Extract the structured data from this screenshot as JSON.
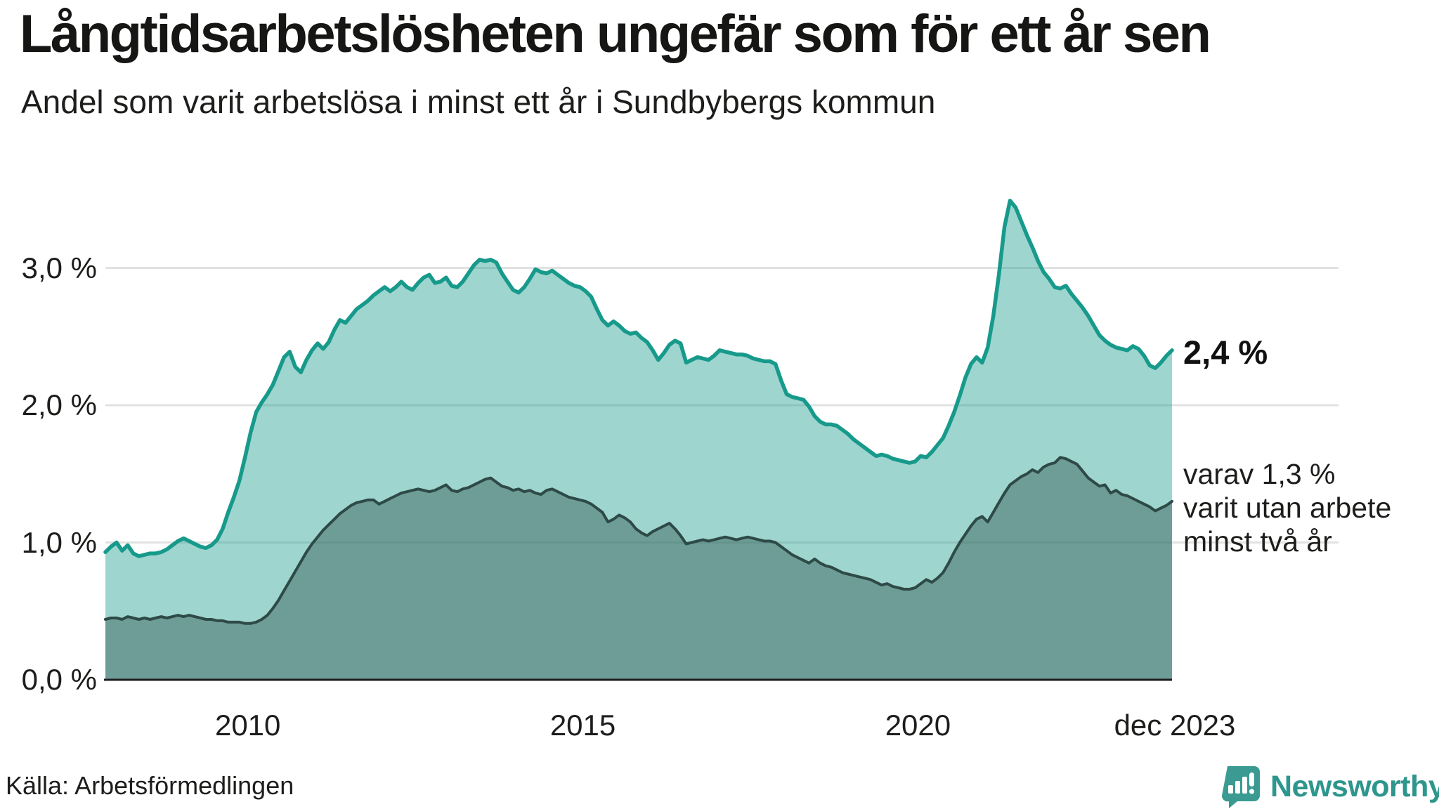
{
  "header": {
    "title": "Långtidsarbetslösheten ungefär som för ett år sen",
    "subtitle": "Andel som varit arbetslösa i minst ett år i Sundbybergs kommun"
  },
  "annotations": {
    "end_value_primary": "2,4 %",
    "end_note_lines": [
      "varav 1,3 %",
      "varit utan arbete",
      "minst två år"
    ]
  },
  "source": {
    "label": "Källa: Arbetsförmedlingen"
  },
  "logo": {
    "brand": "Newsworthy",
    "icon": "newsworthy-speech-bubble-chart-icon",
    "text_color": "#2e968c",
    "icon_color": "#3b9a92"
  },
  "chart_data": {
    "type": "area",
    "title": "Långtidsarbetslösheten ungefär som för ett år sen",
    "subtitle": "Andel som varit arbetslösa i minst ett år i Sundbybergs kommun",
    "frequency": "monthly",
    "x_start": "2008-01",
    "x_end": "2023-12",
    "ylim": [
      0,
      3.6
    ],
    "grid": true,
    "legend_position": "none",
    "colors": {
      "primary_line": "#179a8b",
      "primary_fill": "rgba(26,154,140,0.42)",
      "secondary_line": "#2e4a47",
      "secondary_fill": "rgba(52,89,84,0.45)",
      "gridline": "#e2e2e2",
      "axis_line": "#1d1d1b"
    },
    "y_ticks": [
      {
        "value": 3.0,
        "label": "3,0 %"
      },
      {
        "value": 2.0,
        "label": "2,0 %"
      },
      {
        "value": 1.0,
        "label": "1,0 %"
      },
      {
        "value": 0.0,
        "label": "0,0 %"
      }
    ],
    "x_ticks": [
      {
        "label": "2010",
        "index": 25
      },
      {
        "label": "2015",
        "index": 85
      },
      {
        "label": "2020",
        "index": 145
      },
      {
        "label": "dec 2023",
        "index": 191
      }
    ],
    "series": [
      {
        "name": "Arbetslösa minst ett år",
        "end_label": "2,4 %",
        "values": [
          0.93,
          0.97,
          1.0,
          0.94,
          0.98,
          0.92,
          0.9,
          0.91,
          0.92,
          0.92,
          0.93,
          0.95,
          0.98,
          1.01,
          1.03,
          1.01,
          0.99,
          0.97,
          0.96,
          0.98,
          1.02,
          1.1,
          1.22,
          1.33,
          1.45,
          1.62,
          1.8,
          1.95,
          2.02,
          2.08,
          2.15,
          2.25,
          2.35,
          2.39,
          2.28,
          2.24,
          2.33,
          2.4,
          2.45,
          2.41,
          2.46,
          2.55,
          2.62,
          2.6,
          2.65,
          2.7,
          2.73,
          2.76,
          2.8,
          2.83,
          2.86,
          2.83,
          2.86,
          2.9,
          2.86,
          2.84,
          2.89,
          2.93,
          2.95,
          2.89,
          2.9,
          2.93,
          2.87,
          2.86,
          2.9,
          2.96,
          3.02,
          3.06,
          3.05,
          3.06,
          3.04,
          2.96,
          2.9,
          2.84,
          2.82,
          2.86,
          2.92,
          2.99,
          2.97,
          2.96,
          2.98,
          2.95,
          2.92,
          2.89,
          2.87,
          2.86,
          2.83,
          2.79,
          2.7,
          2.62,
          2.58,
          2.61,
          2.58,
          2.54,
          2.52,
          2.53,
          2.49,
          2.46,
          2.4,
          2.33,
          2.38,
          2.44,
          2.47,
          2.45,
          2.31,
          2.33,
          2.35,
          2.34,
          2.33,
          2.36,
          2.4,
          2.39,
          2.38,
          2.37,
          2.37,
          2.36,
          2.34,
          2.33,
          2.32,
          2.32,
          2.3,
          2.18,
          2.08,
          2.06,
          2.05,
          2.04,
          1.99,
          1.92,
          1.88,
          1.86,
          1.86,
          1.85,
          1.82,
          1.79,
          1.75,
          1.72,
          1.69,
          1.66,
          1.63,
          1.64,
          1.63,
          1.61,
          1.6,
          1.59,
          1.58,
          1.59,
          1.63,
          1.62,
          1.66,
          1.71,
          1.76,
          1.85,
          1.95,
          2.07,
          2.2,
          2.3,
          2.35,
          2.31,
          2.42,
          2.65,
          2.95,
          3.3,
          3.49,
          3.44,
          3.34,
          3.24,
          3.15,
          3.05,
          2.97,
          2.92,
          2.86,
          2.85,
          2.87,
          2.81,
          2.76,
          2.71,
          2.65,
          2.58,
          2.51,
          2.47,
          2.44,
          2.42,
          2.41,
          2.4,
          2.43,
          2.41,
          2.36,
          2.29,
          2.27,
          2.31,
          2.36,
          2.4
        ]
      },
      {
        "name": "Varav utan arbete minst två år",
        "end_label": "1,3 %",
        "values": [
          0.44,
          0.45,
          0.45,
          0.44,
          0.46,
          0.45,
          0.44,
          0.45,
          0.44,
          0.45,
          0.46,
          0.45,
          0.46,
          0.47,
          0.46,
          0.47,
          0.46,
          0.45,
          0.44,
          0.44,
          0.43,
          0.43,
          0.42,
          0.42,
          0.42,
          0.41,
          0.41,
          0.42,
          0.44,
          0.47,
          0.52,
          0.58,
          0.65,
          0.72,
          0.79,
          0.86,
          0.93,
          0.99,
          1.04,
          1.09,
          1.13,
          1.17,
          1.21,
          1.24,
          1.27,
          1.29,
          1.3,
          1.31,
          1.31,
          1.28,
          1.3,
          1.32,
          1.34,
          1.36,
          1.37,
          1.38,
          1.39,
          1.38,
          1.37,
          1.38,
          1.4,
          1.42,
          1.38,
          1.37,
          1.39,
          1.4,
          1.42,
          1.44,
          1.46,
          1.47,
          1.44,
          1.41,
          1.4,
          1.38,
          1.39,
          1.37,
          1.38,
          1.36,
          1.35,
          1.38,
          1.39,
          1.37,
          1.35,
          1.33,
          1.32,
          1.31,
          1.3,
          1.28,
          1.25,
          1.22,
          1.15,
          1.17,
          1.2,
          1.18,
          1.15,
          1.1,
          1.07,
          1.05,
          1.08,
          1.1,
          1.12,
          1.14,
          1.1,
          1.05,
          0.99,
          1.0,
          1.01,
          1.02,
          1.01,
          1.02,
          1.03,
          1.04,
          1.03,
          1.02,
          1.03,
          1.04,
          1.03,
          1.02,
          1.01,
          1.01,
          1.0,
          0.97,
          0.94,
          0.91,
          0.89,
          0.87,
          0.85,
          0.88,
          0.85,
          0.83,
          0.82,
          0.8,
          0.78,
          0.77,
          0.76,
          0.75,
          0.74,
          0.73,
          0.71,
          0.69,
          0.7,
          0.68,
          0.67,
          0.66,
          0.66,
          0.67,
          0.7,
          0.73,
          0.71,
          0.74,
          0.78,
          0.85,
          0.93,
          1.0,
          1.06,
          1.12,
          1.17,
          1.19,
          1.15,
          1.22,
          1.29,
          1.36,
          1.42,
          1.45,
          1.48,
          1.5,
          1.53,
          1.51,
          1.55,
          1.57,
          1.58,
          1.62,
          1.61,
          1.59,
          1.57,
          1.52,
          1.47,
          1.44,
          1.41,
          1.42,
          1.36,
          1.38,
          1.35,
          1.34,
          1.32,
          1.3,
          1.28,
          1.26,
          1.23,
          1.25,
          1.27,
          1.3
        ]
      }
    ]
  }
}
